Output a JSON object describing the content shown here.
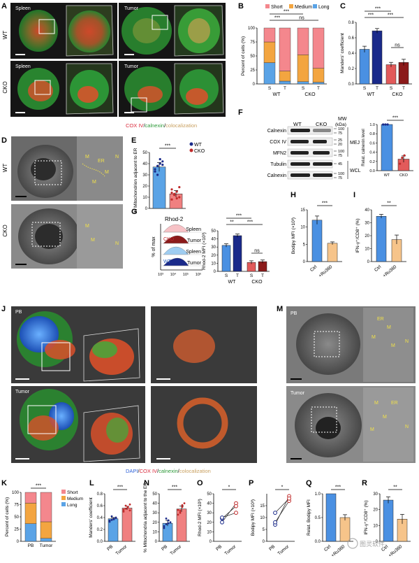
{
  "colors": {
    "short": "#f4878d",
    "medium": "#f3a540",
    "long": "#5aa3e6",
    "wt_dark": "#1a2a8a",
    "cko_dark": "#8b1a1a",
    "wt_light": "#4a90e2",
    "cko_light": "#e25a5a",
    "ru360": "#f6c48a",
    "ctrl": "#4a90e2",
    "cox": "#d9283a",
    "calnexin": "#3cb44b",
    "coloc": "#d9b26a",
    "dapi": "#2f62d9"
  },
  "panels": {
    "A": "A",
    "B": "B",
    "C": "C",
    "D": "D",
    "E": "E",
    "F": "F",
    "G": "G",
    "H": "H",
    "I": "I",
    "J": "J",
    "K": "K",
    "L": "L",
    "M": "M",
    "N": "N",
    "O": "O",
    "P": "P",
    "Q": "Q",
    "R": "R"
  },
  "icons": {
    "cko_face": "face-icon",
    "wt_face": "face-icon"
  },
  "A": {
    "row_wt": "WT",
    "row_cko": "CKO",
    "spleen": "Spleen",
    "tumor": "Tumor",
    "legend_cox": "COX IV",
    "legend_sep": "/",
    "legend_cal": "calnexin",
    "legend_col": "colocalization"
  },
  "B": {
    "title": "",
    "ylabel": "Percent of cells (%)",
    "legend": [
      "Short",
      "Medium",
      "Long"
    ],
    "xt": [
      "S",
      "T",
      "S",
      "T"
    ],
    "groups": [
      "WT",
      "CKO"
    ],
    "sig": [
      "***",
      "***",
      "ns"
    ],
    "ticks": [
      "0",
      "25",
      "50",
      "75",
      "100"
    ]
  },
  "C": {
    "ylabel": "Manders' coefficient",
    "xt": [
      "S",
      "T",
      "S",
      "T"
    ],
    "groups": [
      "WT",
      "CKO"
    ],
    "sig": [
      "***",
      "***",
      "***",
      "ns"
    ],
    "ticks": [
      "0.0",
      "0.2",
      "0.4",
      "0.6",
      "0.8"
    ]
  },
  "D": {
    "wt": "WT",
    "cko": "CKO",
    "lbl_m": "M",
    "lbl_er": "ER",
    "lbl_n": "N"
  },
  "E": {
    "ylabel": "% Mitochondrion adjacent to ER",
    "legend": [
      "WT",
      "CKO"
    ],
    "sig": "***",
    "ticks": [
      "0",
      "10",
      "20",
      "30",
      "40",
      "50"
    ]
  },
  "F": {
    "cols": [
      "WT",
      "CKO"
    ],
    "mw": "MW",
    "mw_sub": "(kDa)",
    "rows": [
      "Calnexin",
      "COX IV",
      "MFN2",
      "Tubulin",
      "Calnexin"
    ],
    "mw_vals": [
      "100",
      "75",
      "25",
      "20",
      "100",
      "75",
      "45",
      "100",
      "75"
    ],
    "group1": "MEJ",
    "group2": "WCL",
    "bar_ylabel": "Relat. calnexin level",
    "bar_x": [
      "WT",
      "CKO"
    ],
    "sig": "***",
    "ticks": [
      "0.0",
      "0.2",
      "0.4",
      "0.6",
      "0.8",
      "1.0"
    ]
  },
  "G": {
    "title": "Rhod-2",
    "ylabel_hist": "% of max",
    "spleen": "Spleen",
    "tumor": "Tumor",
    "cko": "CKO",
    "wt": "WT",
    "xticks": [
      "10³",
      "10⁴",
      "10⁵",
      "10⁶"
    ],
    "bar_ylabel": "Rhod-2 MFI (×10³)",
    "xt": [
      "S",
      "T",
      "S",
      "T"
    ],
    "groups": [
      "WT",
      "CKO"
    ],
    "sig": [
      "***",
      "**",
      "***",
      "ns"
    ],
    "ticks": [
      "0",
      "10",
      "20",
      "30",
      "40",
      "50"
    ]
  },
  "H": {
    "ylabel": "Bodipy MFI (×10³)",
    "x": [
      "Ctrl",
      "+Ru360"
    ],
    "sig": "***",
    "ticks": [
      "0",
      "5",
      "10",
      "15"
    ]
  },
  "I": {
    "ylabel": "IFN-γ⁺/CD8⁺ (%)",
    "x": [
      "Ctrl",
      "+Ru360"
    ],
    "sig": "**",
    "ticks": [
      "0",
      "10",
      "20",
      "30",
      "40"
    ]
  },
  "J": {
    "pb": "PB",
    "tumor": "Tumor",
    "legend_dapi": "DAPI",
    "legend_cox": "COX IV",
    "legend_cal": "calnexin",
    "legend_col": "colocalization",
    "sep": "/"
  },
  "K": {
    "ylabel": "Percent of cells (%)",
    "legend": [
      "Short",
      "Medium",
      "Long"
    ],
    "x": [
      "PB",
      "Tumor"
    ],
    "sig": "***",
    "ticks": [
      "0",
      "25",
      "50",
      "75",
      "100"
    ]
  },
  "L": {
    "ylabel": "Manders' coefficient",
    "x": [
      "PB",
      "Tumor"
    ],
    "sig": "***",
    "ticks": [
      "0.0",
      "0.2",
      "0.4",
      "0.6",
      "0.8"
    ]
  },
  "M": {
    "pb": "PB",
    "tumor": "Tumor",
    "lbl_m": "M",
    "lbl_er": "ER",
    "lbl_n": "N"
  },
  "N": {
    "ylabel": "% Mitochondria adjacent to the ER",
    "x": [
      "PB",
      "Tumor"
    ],
    "sig": "***",
    "ticks": [
      "0",
      "10",
      "20",
      "30",
      "40",
      "50"
    ]
  },
  "O": {
    "ylabel": "Rhod-2 MFI (×10³)",
    "x": [
      "PB",
      "Tumor"
    ],
    "sig": "*",
    "ticks": [
      "0",
      "10",
      "20",
      "30",
      "40",
      "50"
    ]
  },
  "P": {
    "ylabel": "Bodipy MFI (×10³)",
    "x": [
      "PB",
      "Tumor"
    ],
    "sig": "*",
    "ticks": [
      "0",
      "5",
      "10",
      "15"
    ]
  },
  "Q": {
    "ylabel": "Relat. Bodipy MFI",
    "x": [
      "Ctrl",
      "+Ru360"
    ],
    "sig": "***",
    "ticks": [
      "0.0",
      "0.5",
      "1.0"
    ]
  },
  "R": {
    "ylabel": "IFN-γ⁺/CD8⁺ (%)",
    "x": [
      "Ctrl",
      "+Ru360"
    ],
    "sig": "**",
    "ticks": [
      "0",
      "10",
      "20",
      "30"
    ]
  },
  "watermark": "图灵软件",
  "chart_data": [
    {
      "panel": "B",
      "type": "bar",
      "stacked": true,
      "categories": [
        "WT-S",
        "WT-T",
        "CKO-S",
        "CKO-T"
      ],
      "series": [
        {
          "name": "Long",
          "values": [
            38,
            5,
            4,
            3
          ]
        },
        {
          "name": "Medium",
          "values": [
            37,
            18,
            48,
            25
          ]
        },
        {
          "name": "Short",
          "values": [
            25,
            77,
            48,
            72
          ]
        }
      ],
      "ylim": [
        0,
        100
      ],
      "ylabel": "Percent of cells (%)"
    },
    {
      "panel": "C",
      "type": "bar",
      "categories": [
        "WT-S",
        "WT-T",
        "CKO-S",
        "CKO-T"
      ],
      "values": [
        0.45,
        0.69,
        0.25,
        0.28
      ],
      "errors": [
        0.04,
        0.03,
        0.03,
        0.04
      ],
      "ylim": [
        0,
        0.8
      ],
      "ylabel": "Manders' coefficient"
    },
    {
      "panel": "E",
      "type": "bar",
      "categories": [
        "WT",
        "CKO"
      ],
      "values": [
        37,
        13
      ],
      "errors": [
        4,
        3
      ],
      "points": [
        [
          33,
          38,
          40,
          42,
          35,
          30,
          44,
          39
        ],
        [
          8,
          12,
          15,
          10,
          17,
          13,
          9,
          19,
          14
        ]
      ],
      "ylim": [
        0,
        50
      ],
      "ylabel": "% Mitochondrion adjacent to ER"
    },
    {
      "panel": "F",
      "type": "bar",
      "categories": [
        "WT",
        "CKO"
      ],
      "values": [
        1.0,
        0.25
      ],
      "errors": [
        0,
        0.07
      ],
      "points": [
        [
          1,
          1,
          1
        ],
        [
          0.15,
          0.28,
          0.33
        ]
      ],
      "ylim": [
        0,
        1.0
      ],
      "ylabel": "Relat. calnexin level"
    },
    {
      "panel": "G",
      "type": "bar",
      "categories": [
        "WT-S",
        "WT-T",
        "CKO-S",
        "CKO-T"
      ],
      "values": [
        32,
        44,
        11,
        12
      ],
      "errors": [
        2,
        2,
        2,
        2
      ],
      "ylim": [
        0,
        50
      ],
      "ylabel": "Rhod-2 MFI (×10³)"
    },
    {
      "panel": "H",
      "type": "bar",
      "categories": [
        "Ctrl",
        "+Ru360"
      ],
      "values": [
        12,
        5.3
      ],
      "errors": [
        1.2,
        0.4
      ],
      "ylim": [
        0,
        15
      ],
      "ylabel": "Bodipy MFI (×10³)"
    },
    {
      "panel": "I",
      "type": "bar",
      "categories": [
        "Ctrl",
        "+Ru360"
      ],
      "values": [
        35,
        17
      ],
      "errors": [
        1.5,
        3.5
      ],
      "ylim": [
        0,
        40
      ],
      "ylabel": "IFN-γ⁺/CD8⁺ (%)"
    },
    {
      "panel": "K",
      "type": "bar",
      "stacked": true,
      "categories": [
        "PB",
        "Tumor"
      ],
      "series": [
        {
          "name": "Long",
          "values": [
            36,
            6
          ]
        },
        {
          "name": "Medium",
          "values": [
            42,
            34
          ]
        },
        {
          "name": "Short",
          "values": [
            22,
            60
          ]
        }
      ],
      "ylim": [
        0,
        100
      ],
      "ylabel": "Percent of cells (%)"
    },
    {
      "panel": "L",
      "type": "bar",
      "categories": [
        "PB",
        "Tumor"
      ],
      "values": [
        0.38,
        0.56
      ],
      "errors": [
        0.02,
        0.03
      ],
      "ylim": [
        0,
        0.8
      ],
      "ylabel": "Manders' coefficient"
    },
    {
      "panel": "N",
      "type": "bar",
      "categories": [
        "PB",
        "Tumor"
      ],
      "values": [
        19,
        34
      ],
      "errors": [
        3,
        3
      ],
      "ylim": [
        0,
        50
      ],
      "ylabel": "% Mitochondria adjacent to the ER"
    },
    {
      "panel": "O",
      "type": "scatter",
      "paired": true,
      "x": [
        "PB",
        "Tumor"
      ],
      "pairs": [
        [
          20,
          40
        ],
        [
          24,
          37
        ],
        [
          25,
          30
        ]
      ],
      "ylim": [
        0,
        50
      ],
      "ylabel": "Rhod-2 MFI (×10³)"
    },
    {
      "panel": "P",
      "type": "scatter",
      "paired": true,
      "x": [
        "PB",
        "Tumor"
      ],
      "pairs": [
        [
          7,
          19
        ],
        [
          8,
          17
        ],
        [
          12,
          18
        ]
      ],
      "ylim": [
        0,
        20
      ],
      "ylabel": "Bodipy MFI (×10³)"
    },
    {
      "panel": "Q",
      "type": "bar",
      "categories": [
        "Ctrl",
        "+Ru360"
      ],
      "values": [
        1.0,
        0.5
      ],
      "errors": [
        0,
        0.06
      ],
      "ylim": [
        0,
        1.0
      ],
      "ylabel": "Relat. Bodipy MFI"
    },
    {
      "panel": "R",
      "type": "bar",
      "categories": [
        "Ctrl",
        "+Ru360"
      ],
      "values": [
        26,
        14
      ],
      "errors": [
        2,
        3
      ],
      "ylim": [
        0,
        30
      ],
      "ylabel": "IFN-γ⁺/CD8⁺ (%)"
    }
  ]
}
